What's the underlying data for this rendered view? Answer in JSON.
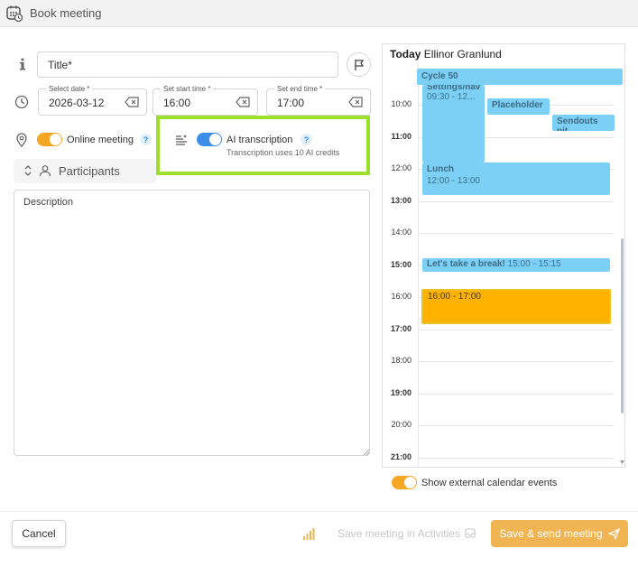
{
  "header": {
    "title": "Book meeting"
  },
  "form": {
    "title_placeholder": "Title*",
    "date": {
      "label": "Select date *",
      "value": "2026-03-12"
    },
    "start_time": {
      "label": "Set start time *",
      "value": "16:00"
    },
    "end_time": {
      "label": "Set end time *",
      "value": "17:00"
    },
    "online_meeting": {
      "label": "Online meeting",
      "on": true
    },
    "ai_transcription": {
      "label": "AI transcription",
      "note": "Transcription uses 10 AI credits",
      "on": true
    },
    "participants_label": "Participants",
    "description_label": "Description",
    "help_glyph": "?"
  },
  "calendar": {
    "today_label": "Today",
    "user": "Ellinor Granlund",
    "hours": [
      {
        "label": "10:00",
        "bold": false
      },
      {
        "label": "11:00",
        "bold": true
      },
      {
        "label": "12:00",
        "bold": false
      },
      {
        "label": "13:00",
        "bold": true
      },
      {
        "label": "14:00",
        "bold": false
      },
      {
        "label": "15:00",
        "bold": true
      },
      {
        "label": "16:00",
        "bold": false
      },
      {
        "label": "17:00",
        "bold": true
      },
      {
        "label": "18:00",
        "bold": false
      },
      {
        "label": "19:00",
        "bold": true
      },
      {
        "label": "20:00",
        "bold": false
      },
      {
        "label": "21:00",
        "bold": true
      }
    ],
    "events": [
      {
        "title": "Cycle 50",
        "time": ""
      },
      {
        "title": "Settings/nav",
        "time": "09:30 - 12..."
      },
      {
        "title": "Placeholder",
        "time": ""
      },
      {
        "title": "Sendouts pit",
        "time": ""
      },
      {
        "title": "Lunch",
        "time": "12:00 - 13:00"
      },
      {
        "title": "Let's take a break!",
        "time": "15:00 - 15:15"
      },
      {
        "title": "",
        "time": "16:00 - 17:00"
      }
    ],
    "external_toggle": {
      "label": "Show external calendar events",
      "on": true
    }
  },
  "footer": {
    "cancel_label": "Cancel",
    "save_activities_label": "Save meeting in Activities",
    "send_label": "Save & send meeting"
  },
  "colors": {
    "accent_orange": "#f5a623",
    "toggle_blue": "#3b8de8",
    "event_blue": "#7dd0f5",
    "event_orange": "#ffb200",
    "highlight_green": "#9ce02e"
  }
}
